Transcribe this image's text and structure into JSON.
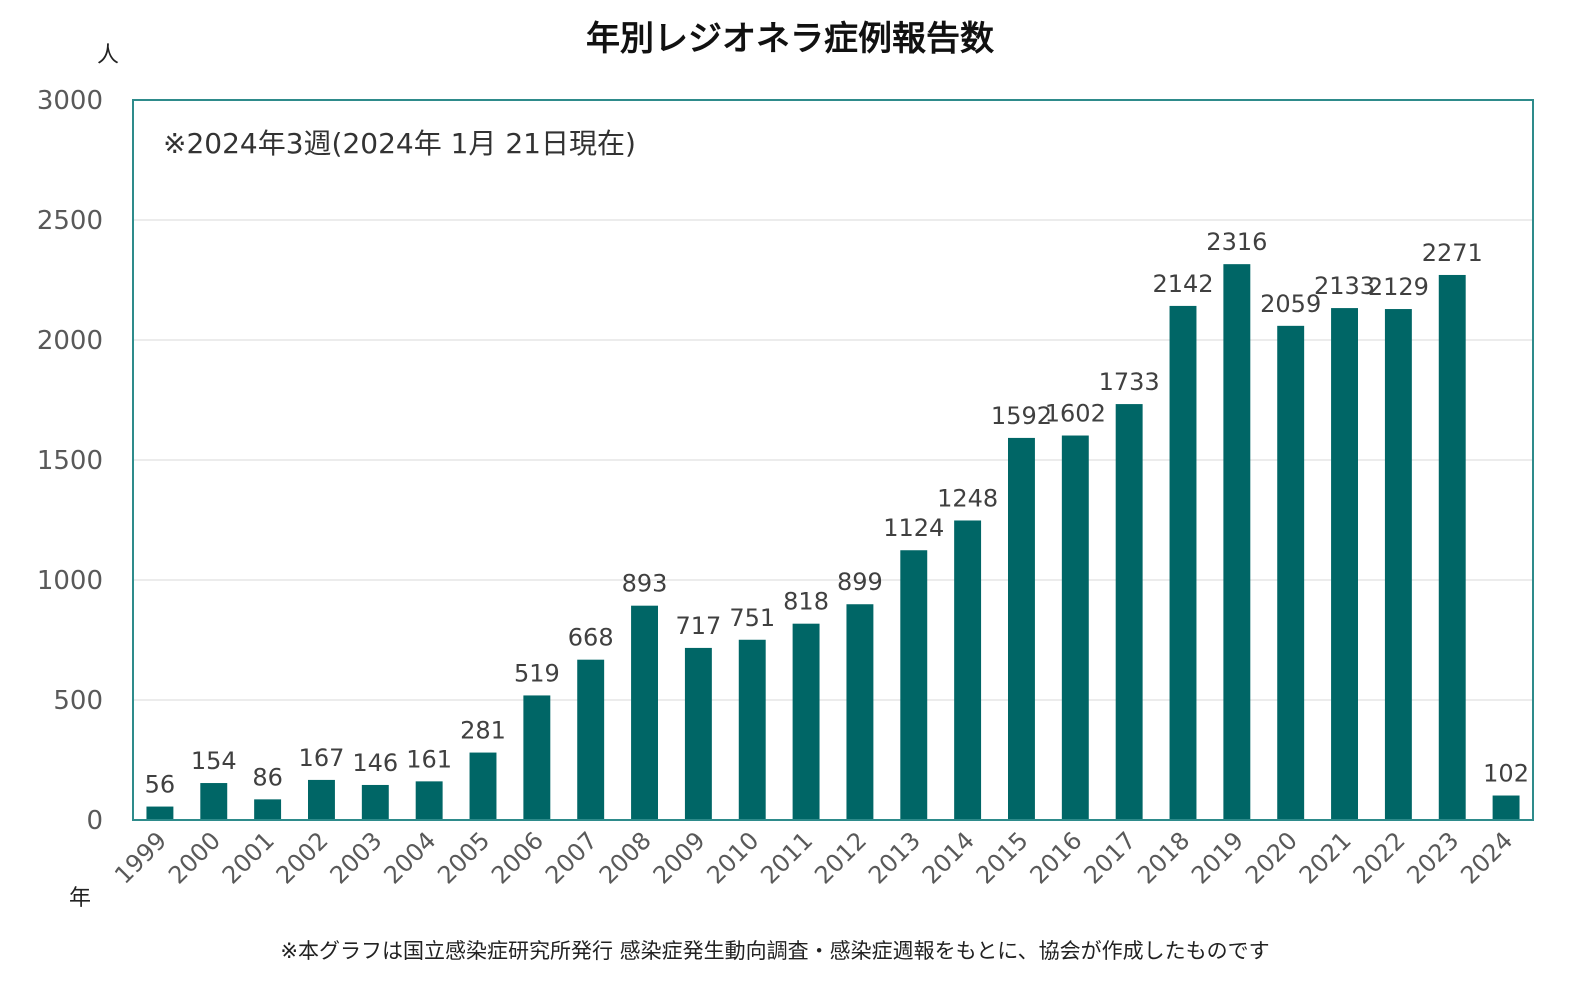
{
  "title": "年別レジオネラ症例報告数",
  "y_unit": "人",
  "x_unit": "年",
  "annotation": "※2024年3週(2024年 1月 21日現在)",
  "footnote": "※本グラフは国立感染症研究所発行 感染症発生動向調査・感染症週報をもとに、協会が作成したものです",
  "colors": {
    "bar": "#006666",
    "frame": "#2e8b8b",
    "grid": "#d9d9d9",
    "text": "#595959"
  },
  "chart_data": {
    "type": "bar",
    "title": "年別レジオネラ症例報告数",
    "ylabel": "人",
    "xlabel": "年",
    "ylim": [
      0,
      3000
    ],
    "yticks": [
      0,
      500,
      1000,
      1500,
      2000,
      2500,
      3000
    ],
    "grid": true,
    "categories": [
      "1999",
      "2000",
      "2001",
      "2002",
      "2003",
      "2004",
      "2005",
      "2006",
      "2007",
      "2008",
      "2009",
      "2010",
      "2011",
      "2012",
      "2013",
      "2014",
      "2015",
      "2016",
      "2017",
      "2018",
      "2019",
      "2020",
      "2021",
      "2022",
      "2023",
      "2024"
    ],
    "values": [
      56,
      154,
      86,
      167,
      146,
      161,
      281,
      519,
      668,
      893,
      717,
      751,
      818,
      899,
      1124,
      1248,
      1592,
      1602,
      1733,
      2142,
      2316,
      2059,
      2133,
      2129,
      2271,
      102
    ]
  }
}
